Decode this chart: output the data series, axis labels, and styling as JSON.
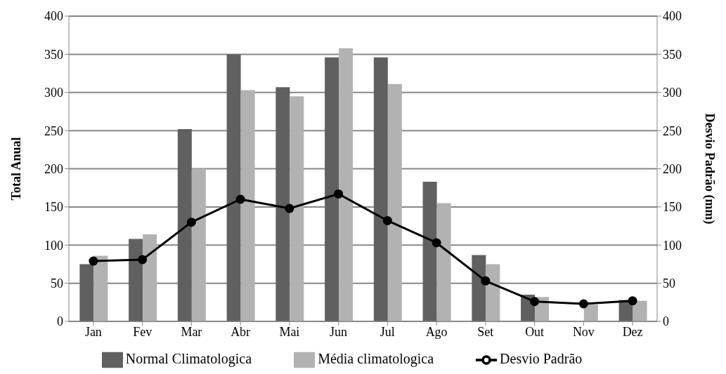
{
  "chart_data": {
    "type": "bar",
    "categories": [
      "Jan",
      "Fev",
      "Mar",
      "Abr",
      "Mai",
      "Jun",
      "Jul",
      "Ago",
      "Set",
      "Out",
      "Nov",
      "Dez"
    ],
    "ylabel": "Total Anual",
    "y2label": "Desvio Padrão (mm)",
    "series": [
      {
        "name": "Normal Climatologica",
        "color": "#606060",
        "values": [
          75,
          108,
          252,
          350,
          307,
          346,
          346,
          183,
          87,
          35,
          null,
          28
        ]
      },
      {
        "name": "Média climatologica",
        "color": "#b2b2b2",
        "values": [
          86,
          114,
          200,
          303,
          295,
          358,
          311,
          155,
          75,
          32,
          22,
          27
        ]
      },
      {
        "name": "Desvio Padrão",
        "type": "line",
        "axis": "y2",
        "color": "#000000",
        "marker": "circle",
        "values": [
          79,
          81,
          130,
          160,
          148,
          167,
          132,
          103,
          53,
          26,
          23,
          27
        ]
      }
    ],
    "ylim": [
      0,
      400
    ],
    "yticks": [
      0,
      50,
      100,
      150,
      200,
      250,
      300,
      350,
      400
    ],
    "y2lim": [
      0,
      400
    ],
    "y2ticks": [
      0,
      50,
      100,
      150,
      200,
      250,
      300,
      350,
      400
    ],
    "grid": "y",
    "legend": "bottom"
  }
}
